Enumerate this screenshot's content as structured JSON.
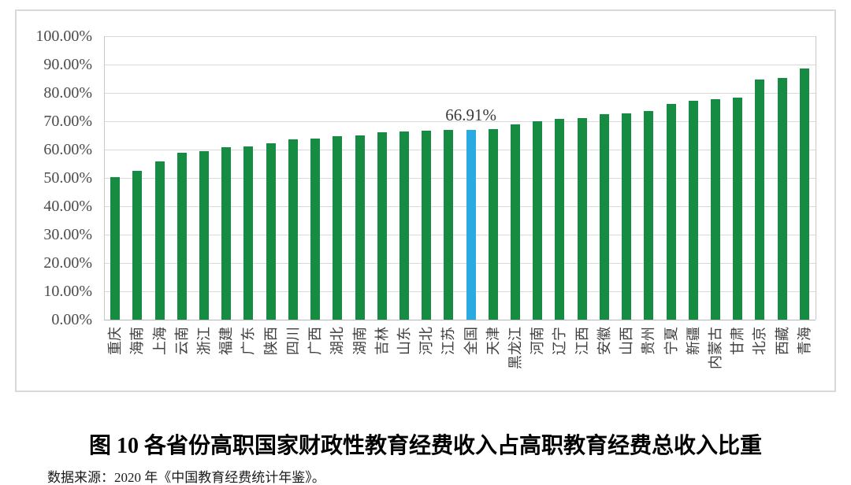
{
  "page": {
    "title": "图 10  各省份高职国家财政性教育经费收入占高职教育经费总收入比重",
    "source": "数据来源：2020 年《中国教育经费统计年鉴》。"
  },
  "chart_data": {
    "type": "bar",
    "title": "",
    "xlabel": "",
    "ylabel": "",
    "categories": [
      "重庆",
      "海南",
      "上海",
      "云南",
      "浙江",
      "福建",
      "广东",
      "陕西",
      "四川",
      "广西",
      "湖北",
      "湖南",
      "吉林",
      "山东",
      "河北",
      "江苏",
      "全国",
      "天津",
      "黑龙江",
      "河南",
      "辽宁",
      "江西",
      "安徽",
      "山西",
      "贵州",
      "宁夏",
      "新疆",
      "内蒙古",
      "甘肃",
      "北京",
      "西藏",
      "青海"
    ],
    "values": [
      50.4,
      52.5,
      55.7,
      59.0,
      59.5,
      60.7,
      61.1,
      62.1,
      63.5,
      64.0,
      64.8,
      65.1,
      66.0,
      66.5,
      66.7,
      66.85,
      66.91,
      67.3,
      68.9,
      70.1,
      70.8,
      71.1,
      72.5,
      72.9,
      73.6,
      76.1,
      77.2,
      77.8,
      78.2,
      84.6,
      85.4,
      88.6
    ],
    "highlight": {
      "category": "全国",
      "index": 16,
      "value": 66.91,
      "label": "66.91%",
      "color": "#29abe2"
    },
    "bar_color": "#168c42",
    "gridline_color": "#d9d9d9",
    "axis_color": "#b7b7b7",
    "ylim": [
      0,
      100
    ],
    "ytick_values": [
      0,
      10,
      20,
      30,
      40,
      50,
      60,
      70,
      80,
      90,
      100
    ],
    "ytick_labels": [
      "0.00%",
      "10.00%",
      "20.00%",
      "30.00%",
      "40.00%",
      "50.00%",
      "60.00%",
      "70.00%",
      "80.00%",
      "90.00%",
      "100.00%"
    ],
    "grid": true,
    "legend": "none"
  }
}
